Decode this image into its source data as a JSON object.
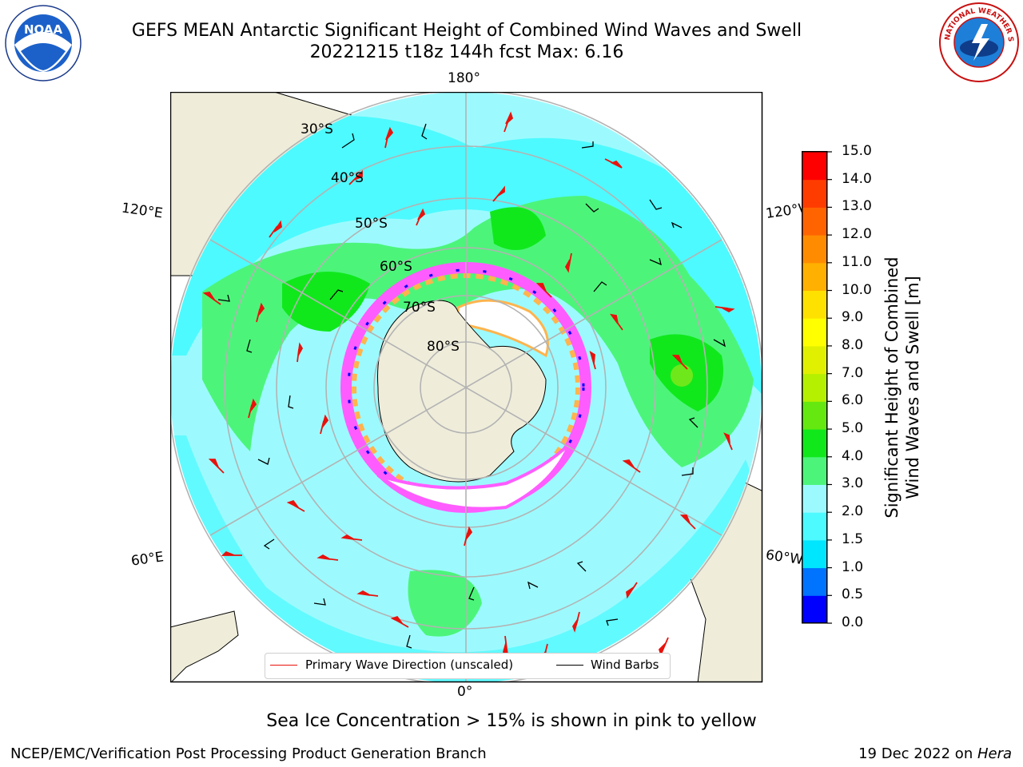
{
  "header": {
    "title_line1": "GEFS MEAN Antarctic Significant Height of Combined Wind Waves and Swell",
    "title_line2": "20221215 t18z 144h fcst   Max: 6.16"
  },
  "logos": {
    "left": {
      "name": "NOAA",
      "text": "NOAA"
    },
    "right": {
      "name": "National Weather Service",
      "text": "NATIONAL WEATHER SERVICE"
    }
  },
  "map": {
    "longitude_labels": {
      "top": "180°",
      "bottom": "0°",
      "upper_left": "120°E",
      "upper_right": "120°W",
      "lower_left": "60°E",
      "lower_right": "60°W"
    },
    "latitude_labels": [
      "30°S",
      "40°S",
      "50°S",
      "60°S",
      "70°S",
      "80°S"
    ],
    "colors": {
      "ocean_mid": "#9cfaff",
      "ocean_low": "#4dfaff",
      "land": "#efedda",
      "wave_3_4": "#4cf57a",
      "wave_4_5": "#10e81c",
      "wave_5_6": "#6ee81a",
      "ice_pink": "#ff5cff",
      "ice_orange": "#ffb44d",
      "arrow": "#e8120c",
      "grid": "#b3b3b3"
    }
  },
  "colorbar": {
    "title_line1": "Significant Height of Combined",
    "title_line2": "Wind Waves and Swell [m]",
    "ticks": [
      "15.0",
      "14.0",
      "13.0",
      "12.0",
      "11.0",
      "10.0",
      "9.0",
      "8.0",
      "7.0",
      "6.0",
      "5.0",
      "4.0",
      "3.0",
      "2.0",
      "1.5",
      "1.0",
      "0.5",
      "0.0"
    ],
    "colors": [
      "#0000ff",
      "#0073ff",
      "#00e6ff",
      "#4dfaff",
      "#9cfaff",
      "#4cf57a",
      "#10e81c",
      "#64e810",
      "#b4f000",
      "#e0f000",
      "#ffff00",
      "#ffe100",
      "#ffb000",
      "#ff8c00",
      "#ff6400",
      "#ff3c00",
      "#ff0000"
    ]
  },
  "legend": {
    "wave_direction": "Primary Wave Direction (unscaled)",
    "wind_barbs": "Wind Barbs"
  },
  "footer": {
    "caption": "Sea Ice Concentration > 15% is shown in pink to yellow",
    "credit": "NCEP/EMC/Verification Post Processing Product Generation Branch",
    "date": "19 Dec 2022 on ",
    "machine": "Hera"
  }
}
